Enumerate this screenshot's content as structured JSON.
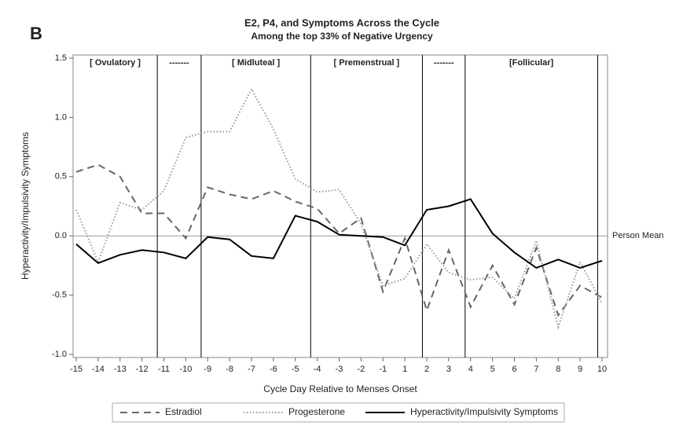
{
  "chart_data": {
    "type": "line",
    "panel_label": "B",
    "title": "E2, P4, and Symptoms Across the Cycle",
    "subtitle": "Among the top 33% of Negative Urgency",
    "x_label": "Cycle Day Relative to Menses Onset",
    "y_label": "Hyperactivity/Impulsivity Symptoms",
    "categories": [
      -15,
      -14,
      -13,
      -12,
      -11,
      -10,
      -9,
      -8,
      -7,
      -6,
      -5,
      -4,
      -3,
      -2,
      -1,
      1,
      2,
      3,
      4,
      5,
      6,
      7,
      8,
      9,
      10
    ],
    "ylim": [
      -1.0,
      1.5
    ],
    "yticks": [
      {
        "value": -1.0,
        "label": "-1.0"
      },
      -0.5,
      {
        "value": 0.0,
        "label": "0.0"
      },
      0.5,
      {
        "value": 1.0,
        "label": "1.0"
      },
      1.5
    ],
    "reference_line": {
      "value": 0,
      "label": "Person Mean"
    },
    "phases": [
      {
        "label": "[ Ovulatory ]",
        "end": 3.7
      },
      {
        "label": "-------",
        "end": 5.7
      },
      {
        "label": "[ Midluteal ]",
        "end": 10.7
      },
      {
        "label": "[ Premenstrual ]",
        "end": 15.8
      },
      {
        "label": "-------",
        "end": 17.75
      },
      {
        "label": "[Follicular]",
        "end": 23.8
      }
    ],
    "series": [
      {
        "name": "Estradiol",
        "color": "#666666",
        "dash": "dashed",
        "values": [
          0.54,
          0.6,
          0.5,
          0.19,
          0.19,
          -0.02,
          0.41,
          0.35,
          0.31,
          0.38,
          0.29,
          0.23,
          0.02,
          0.15,
          -0.47,
          -0.02,
          -0.63,
          -0.12,
          -0.6,
          -0.25,
          -0.58,
          -0.1,
          -0.67,
          -0.42,
          -0.52
        ]
      },
      {
        "name": "Progesterone",
        "color": "#999999",
        "dash": "dotted",
        "values": [
          0.22,
          -0.22,
          0.28,
          0.22,
          0.38,
          0.83,
          0.88,
          0.88,
          1.24,
          0.9,
          0.48,
          0.37,
          0.39,
          0.1,
          -0.42,
          -0.36,
          -0.07,
          -0.31,
          -0.37,
          -0.35,
          -0.53,
          -0.04,
          -0.77,
          -0.22,
          -0.57
        ]
      },
      {
        "name": "Hyperactivity/Impulsivity Symptoms",
        "color": "#000000",
        "dash": "solid",
        "values": [
          -0.07,
          -0.23,
          -0.16,
          -0.12,
          -0.14,
          -0.19,
          -0.01,
          -0.03,
          -0.17,
          -0.19,
          0.17,
          0.12,
          0.01,
          0.0,
          -0.01,
          -0.08,
          0.22,
          0.25,
          0.31,
          0.02,
          -0.14,
          -0.27,
          -0.2,
          -0.27,
          -0.21
        ]
      }
    ]
  }
}
